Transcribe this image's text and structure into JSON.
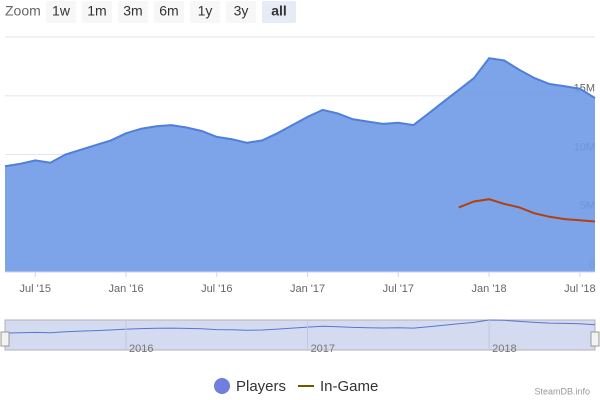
{
  "chart_data": {
    "type": "area",
    "zoom": {
      "label": "Zoom",
      "buttons": [
        "1w",
        "1m",
        "3m",
        "6m",
        "1y",
        "3y",
        "all"
      ],
      "selected": 6
    },
    "x": [
      "2015-05",
      "2015-06",
      "2015-07",
      "2015-08",
      "2015-09",
      "2015-10",
      "2015-11",
      "2015-12",
      "2016-01",
      "2016-02",
      "2016-03",
      "2016-04",
      "2016-05",
      "2016-06",
      "2016-07",
      "2016-08",
      "2016-09",
      "2016-10",
      "2016-11",
      "2016-12",
      "2017-01",
      "2017-02",
      "2017-03",
      "2017-04",
      "2017-05",
      "2017-06",
      "2017-07",
      "2017-08",
      "2017-09",
      "2017-10",
      "2017-11",
      "2017-12",
      "2018-01",
      "2018-02",
      "2018-03",
      "2018-04",
      "2018-05",
      "2018-06",
      "2018-07",
      "2018-08"
    ],
    "xlim": [
      "2015-05",
      "2018-08"
    ],
    "xticks": [
      {
        "value": "2015-07",
        "label": "Jul '15"
      },
      {
        "value": "2016-01",
        "label": "Jan '16"
      },
      {
        "value": "2016-07",
        "label": "Jul '16"
      },
      {
        "value": "2017-01",
        "label": "Jan '17"
      },
      {
        "value": "2017-07",
        "label": "Jul '17"
      },
      {
        "value": "2018-01",
        "label": "Jan '18"
      },
      {
        "value": "2018-07",
        "label": "Jul '18"
      }
    ],
    "ylim": [
      0,
      20000000
    ],
    "yticks": [
      0,
      {
        "value": 5000000,
        "label": "5M"
      },
      {
        "value": 10000000,
        "label": "10M"
      },
      {
        "value": 15000000,
        "label": "15M"
      }
    ],
    "grid": true,
    "series": [
      {
        "name": "Players",
        "color": "#6f9ae6",
        "values": [
          9000000,
          9200000,
          9500000,
          9300000,
          10000000,
          10400000,
          10800000,
          11200000,
          11800000,
          12200000,
          12400000,
          12500000,
          12300000,
          12000000,
          11500000,
          11300000,
          11000000,
          11200000,
          11800000,
          12500000,
          13200000,
          13800000,
          13500000,
          13000000,
          12800000,
          12600000,
          12700000,
          12500000,
          13500000,
          14500000,
          15500000,
          16500000,
          18200000,
          18000000,
          17200000,
          16500000,
          16000000,
          15800000,
          15600000,
          14800000
        ]
      },
      {
        "name": "In-Game",
        "color": "#b2400f",
        "values": [
          null,
          null,
          null,
          null,
          null,
          null,
          null,
          null,
          null,
          null,
          null,
          null,
          null,
          null,
          null,
          null,
          null,
          null,
          null,
          null,
          null,
          null,
          null,
          null,
          null,
          null,
          null,
          null,
          null,
          null,
          5500000,
          6000000,
          6200000,
          5800000,
          5500000,
          5000000,
          4700000,
          4500000,
          4400000,
          4300000
        ]
      }
    ],
    "navigator": {
      "xticks": [
        {
          "value": "2016-01",
          "label": "2016"
        },
        {
          "value": "2017-01",
          "label": "2017"
        },
        {
          "value": "2018-01",
          "label": "2018"
        }
      ]
    },
    "credits": "SteamDB.info"
  }
}
